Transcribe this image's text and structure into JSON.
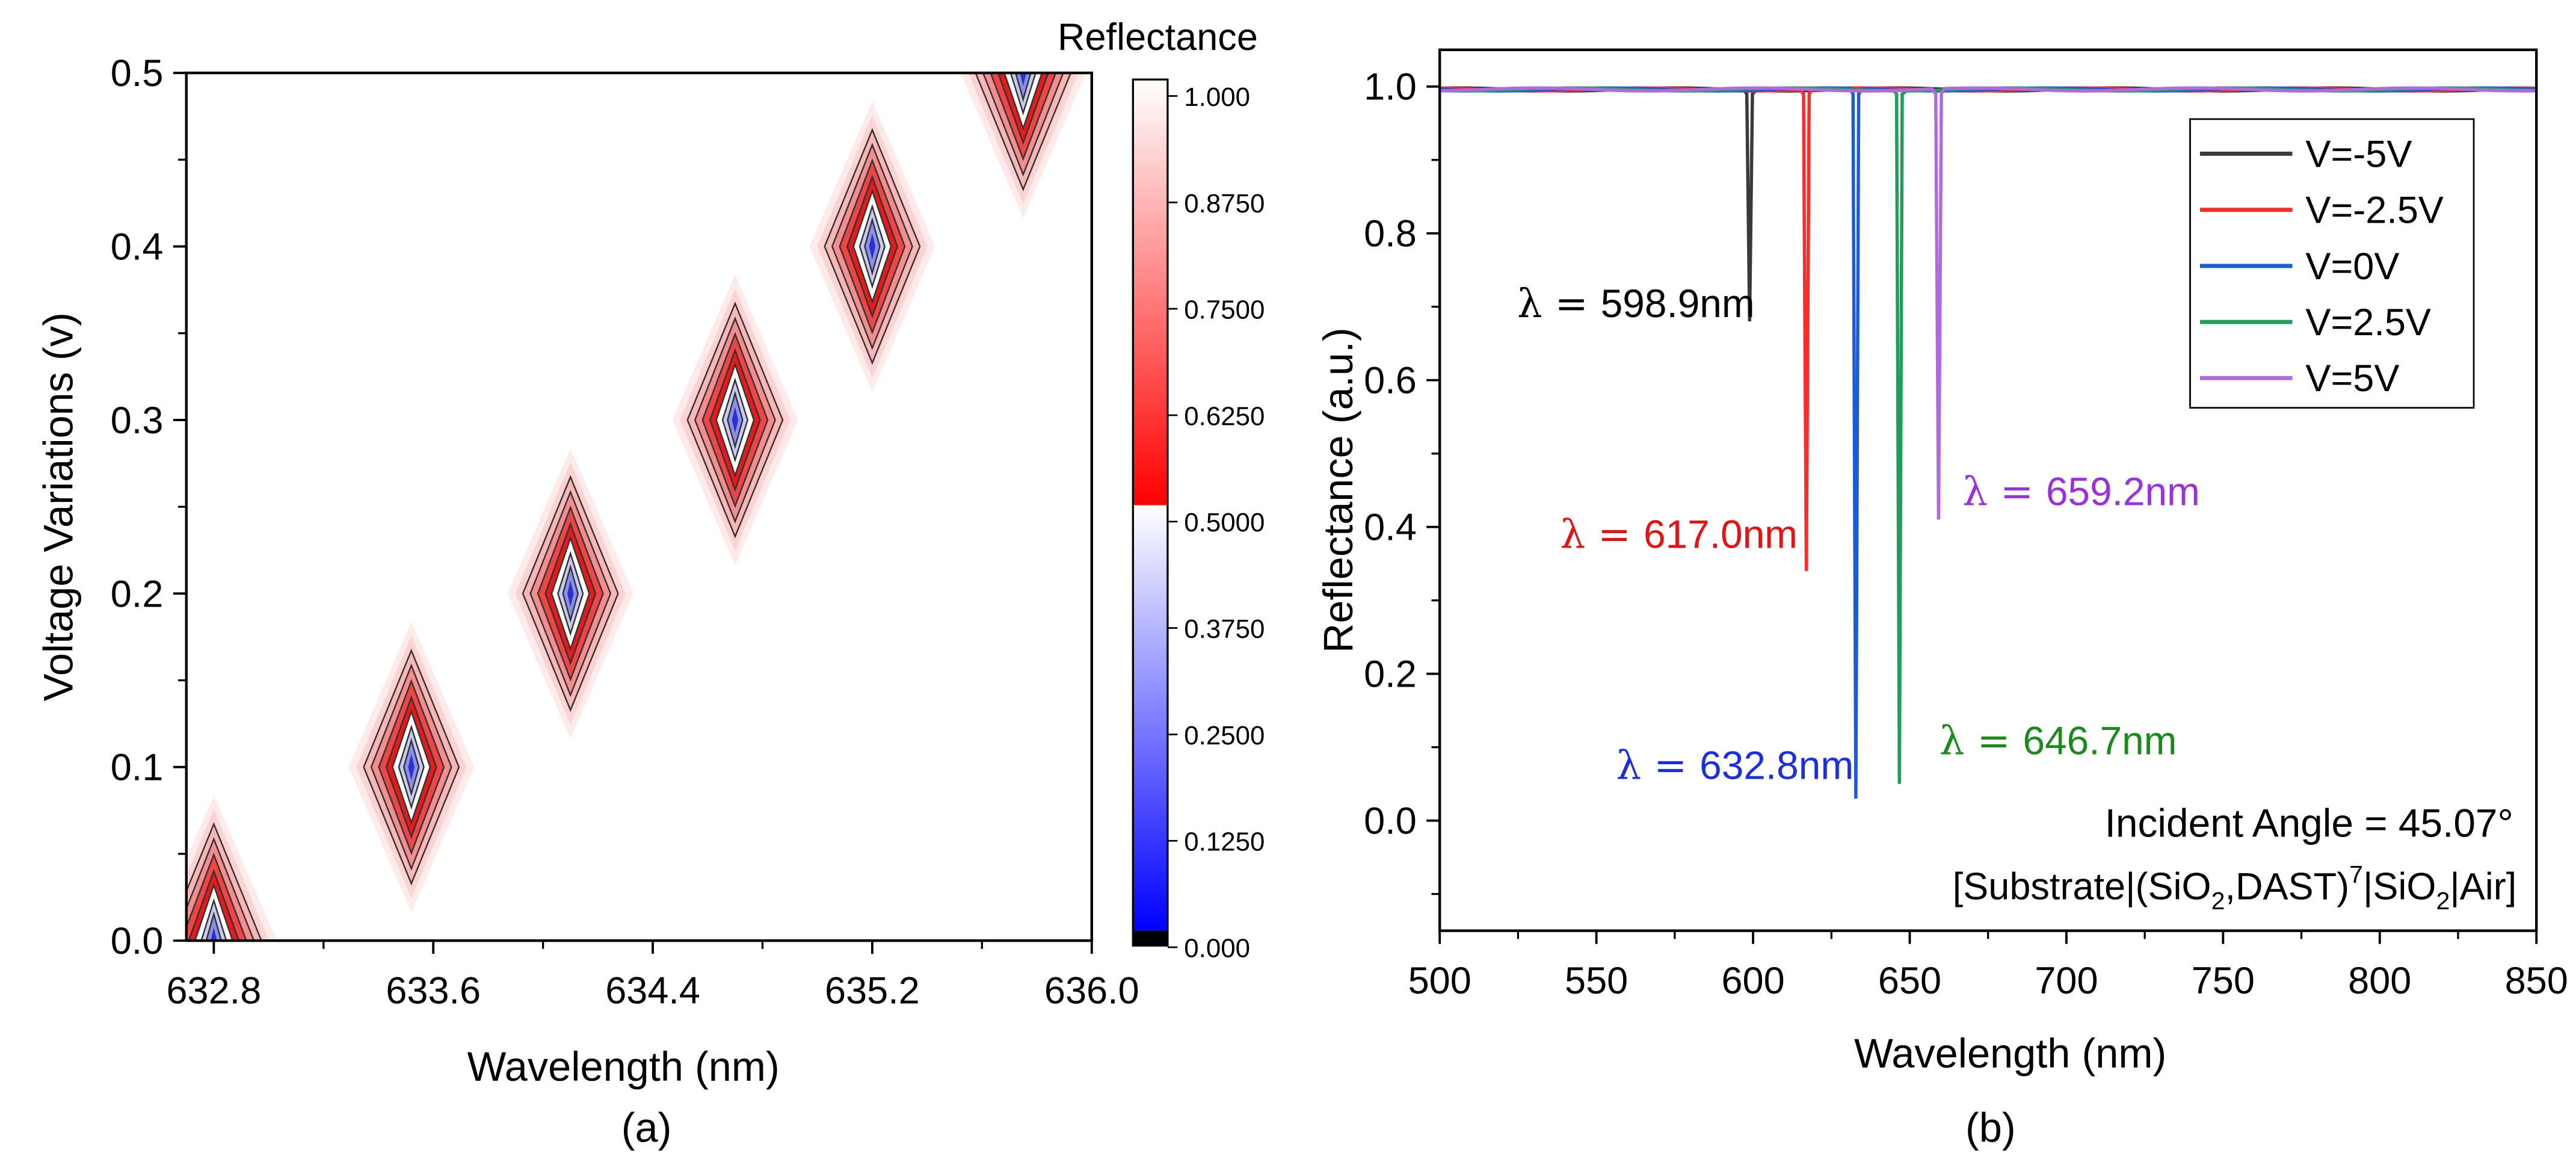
{
  "chart_data": [
    {
      "type": "heatmap",
      "panel_label": "(a)",
      "xlabel": "Wavelength (nm)",
      "ylabel": "Voltage Variations (v)",
      "xlim": [
        632.7,
        636.0
      ],
      "ylim": [
        0.0,
        0.5
      ],
      "xticks": [
        "632.8",
        "633.6",
        "634.4",
        "635.2",
        "636.0"
      ],
      "yticks": [
        "0.0",
        "0.1",
        "0.2",
        "0.3",
        "0.4",
        "0.5"
      ],
      "colorbar": {
        "title": "Reflectance",
        "ticks": [
          "0.000",
          "0.1250",
          "0.2500",
          "0.3750",
          "0.5000",
          "0.6250",
          "0.7500",
          "0.8750",
          "1.000"
        ],
        "range": [
          0.0,
          1.0
        ]
      },
      "resonances": [
        {
          "voltage": 0.0,
          "wavelength": 632.8
        },
        {
          "voltage": 0.1,
          "wavelength": 633.52
        },
        {
          "voltage": 0.2,
          "wavelength": 634.1
        },
        {
          "voltage": 0.3,
          "wavelength": 634.7
        },
        {
          "voltage": 0.4,
          "wavelength": 635.2
        },
        {
          "voltage": 0.5,
          "wavelength": 635.75
        }
      ]
    },
    {
      "type": "line",
      "panel_label": "(b)",
      "xlabel": "Wavelength (nm)",
      "ylabel": "Reflectance (a.u.)",
      "xlim": [
        500,
        850
      ],
      "ylim": [
        -0.15,
        1.05
      ],
      "xticks": [
        "500",
        "550",
        "600",
        "650",
        "700",
        "750",
        "800",
        "850"
      ],
      "yticks": [
        "0.0",
        "0.2",
        "0.4",
        "0.6",
        "0.8",
        "1.0"
      ],
      "legend_position": "top-right",
      "series": [
        {
          "name": "V=-5V",
          "color": "#3a3a3a",
          "dip_wavelength": 598.9,
          "dip_min": 0.68,
          "annotation": "598.9nm"
        },
        {
          "name": "V=-2.5V",
          "color": "#ff2a2a",
          "dip_wavelength": 617.0,
          "dip_min": 0.34,
          "annotation": "617.0nm"
        },
        {
          "name": "V=0V",
          "color": "#1a5adc",
          "dip_wavelength": 632.8,
          "dip_min": 0.03,
          "annotation": "632.8nm"
        },
        {
          "name": "V=2.5V",
          "color": "#1f9e5a",
          "dip_wavelength": 646.7,
          "dip_min": 0.05,
          "annotation": "646.7nm"
        },
        {
          "name": "V=5V",
          "color": "#b06ae0",
          "dip_wavelength": 659.2,
          "dip_min": 0.41,
          "annotation": "659.2nm"
        }
      ],
      "annotation_colors": [
        "#000000",
        "#e81010",
        "#1a2ee8",
        "#1a8a1a",
        "#9b30e0"
      ],
      "lambda_symbol": "λ",
      "equals": "=",
      "incident_angle_text": "Incident Angle = 45.07°",
      "structure_text": {
        "part1": "[Substrate|(SiO",
        "sub1": "2",
        "part2": ",DAST)",
        "sup": "7",
        "part3": "|SiO",
        "sub2": "2",
        "part4": "|Air]"
      }
    }
  ]
}
